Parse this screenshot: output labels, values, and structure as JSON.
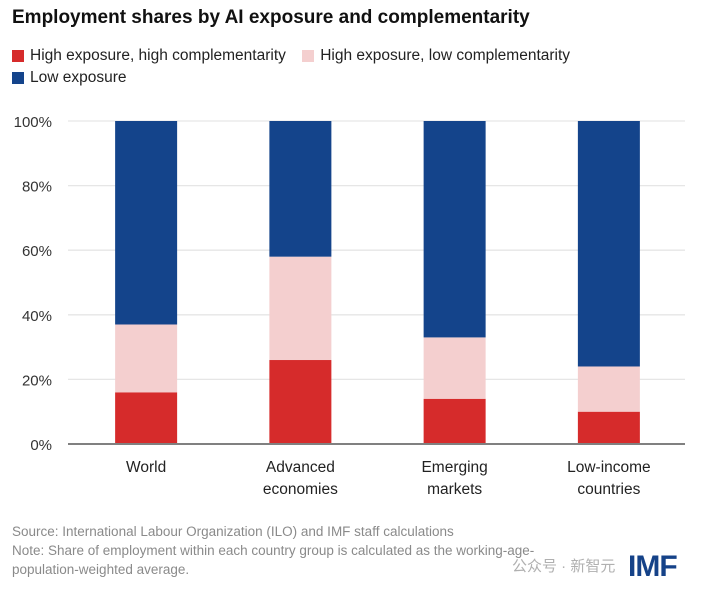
{
  "chart_data": {
    "type": "bar",
    "stacked": true,
    "title": "Employment shares by AI exposure and complementarity",
    "categories": [
      "World",
      "Advanced economies",
      "Emerging markets",
      "Low-income countries"
    ],
    "category_lines": [
      [
        "World"
      ],
      [
        "Advanced",
        "economies"
      ],
      [
        "Emerging",
        "markets"
      ],
      [
        "Low-income",
        "countries"
      ]
    ],
    "series": [
      {
        "name": "High exposure, high complementarity",
        "color": "#d62b2b",
        "values": [
          16,
          26,
          14,
          10
        ]
      },
      {
        "name": "High exposure, low complementarity",
        "color": "#f4cfcf",
        "values": [
          21,
          32,
          19,
          14
        ]
      },
      {
        "name": "Low exposure",
        "color": "#14448b",
        "values": [
          63,
          42,
          67,
          76
        ]
      }
    ],
    "ylim": [
      0,
      100
    ],
    "yticks": [
      "0%",
      "20%",
      "40%",
      "60%",
      "80%",
      "100%"
    ],
    "ytick_values": [
      0,
      20,
      40,
      60,
      80,
      100
    ],
    "grid": true,
    "legend": "top-left",
    "xlabel": "",
    "ylabel": ""
  },
  "footer": {
    "source": "Source: International Labour Organization (ILO) and IMF staff calculations",
    "note": "Note: Share of employment within each country group is calculated as the working-age-population-weighted average."
  },
  "watermark": "公众号 · 新智元",
  "logo": "IMF"
}
